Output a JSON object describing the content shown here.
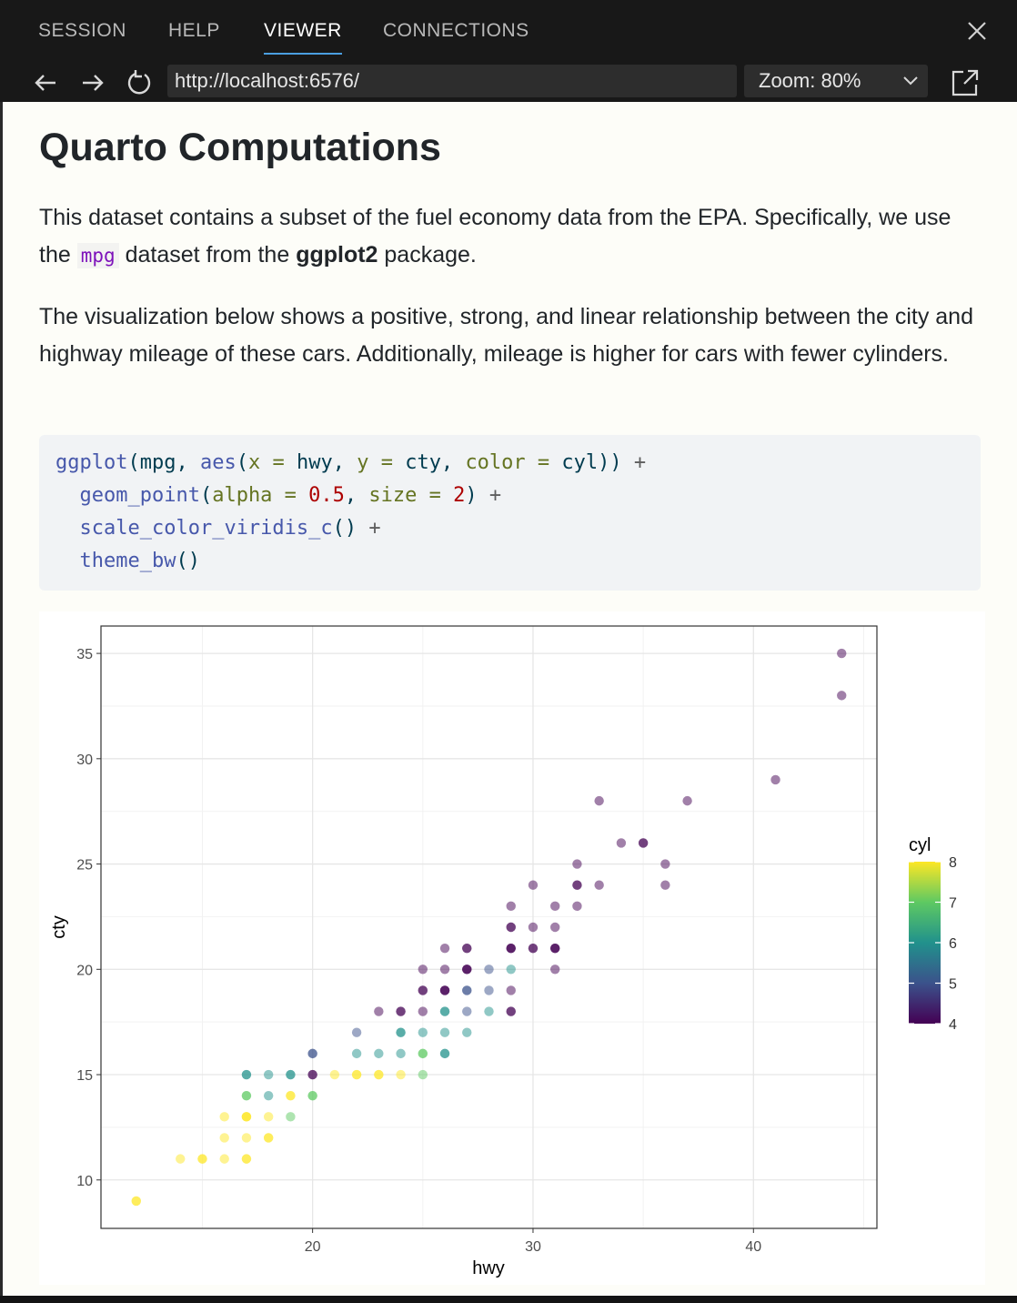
{
  "tabs": [
    {
      "label": "SESSION"
    },
    {
      "label": "HELP"
    },
    {
      "label": "VIEWER"
    },
    {
      "label": "CONNECTIONS"
    }
  ],
  "toolbar": {
    "url": "http://localhost:6576/",
    "zoom": "Zoom: 80%"
  },
  "doc": {
    "title": "Quarto Computations",
    "p1_a": "This dataset contains a subset of the fuel economy data from the EPA. Specifically, we use the ",
    "p1_code": "mpg",
    "p1_b": " dataset from the ",
    "p1_bold": "ggplot2",
    "p1_c": " package.",
    "p2": "The visualization below shows a positive, strong, and linear relationship between the city and highway mileage of these cars. Additionally, mileage is higher for cars with fewer cylinders.",
    "code": {
      "l1_fn": "ggplot",
      "l1_a": "(mpg, ",
      "l1_fn2": "aes",
      "l1_b": "(",
      "l1_x": "x =",
      "l1_c": " hwy, ",
      "l1_y": "y =",
      "l1_d": " cty, ",
      "l1_col": "color =",
      "l1_e": " cyl)) ",
      "l1_plus": "+",
      "l2_fn": "geom_point",
      "l2_a": "(",
      "l2_alpha": "alpha =",
      "l2_num1": " 0.5",
      "l2_b": ", ",
      "l2_size": "size =",
      "l2_num2": " 2",
      "l2_c": ") ",
      "l2_plus": "+",
      "l3_fn": "scale_color_viridis_c",
      "l3_a": "() ",
      "l3_plus": "+",
      "l4_fn": "theme_bw",
      "l4_a": "()"
    }
  },
  "chart_data": {
    "type": "scatter",
    "xlabel": "hwy",
    "ylabel": "cty",
    "xlim": [
      10.4,
      45.6
    ],
    "ylim": [
      7.7,
      36.3
    ],
    "xticks": [
      20,
      30,
      40
    ],
    "yticks": [
      10,
      15,
      20,
      25,
      30,
      35
    ],
    "grid": true,
    "legend": {
      "title": "cyl",
      "position": "right",
      "ticks": [
        8,
        7,
        6,
        5,
        4
      ],
      "range": [
        4,
        8
      ]
    },
    "points": [
      {
        "x": 44,
        "y": 35,
        "cyl": 4
      },
      {
        "x": 44,
        "y": 33,
        "cyl": 4
      },
      {
        "x": 41,
        "y": 29,
        "cyl": 4
      },
      {
        "x": 33,
        "y": 28,
        "cyl": 4
      },
      {
        "x": 37,
        "y": 28,
        "cyl": 4
      },
      {
        "x": 34,
        "y": 26,
        "cyl": 4
      },
      {
        "x": 35,
        "y": 26,
        "cyl": 4
      },
      {
        "x": 35,
        "y": 26,
        "cyl": 4
      },
      {
        "x": 32,
        "y": 25,
        "cyl": 4
      },
      {
        "x": 36,
        "y": 25,
        "cyl": 4
      },
      {
        "x": 30,
        "y": 24,
        "cyl": 4
      },
      {
        "x": 32,
        "y": 24,
        "cyl": 4
      },
      {
        "x": 32,
        "y": 24,
        "cyl": 4
      },
      {
        "x": 33,
        "y": 24,
        "cyl": 4
      },
      {
        "x": 36,
        "y": 24,
        "cyl": 4
      },
      {
        "x": 29,
        "y": 23,
        "cyl": 4
      },
      {
        "x": 31,
        "y": 23,
        "cyl": 4
      },
      {
        "x": 32,
        "y": 23,
        "cyl": 4
      },
      {
        "x": 29,
        "y": 22,
        "cyl": 4
      },
      {
        "x": 29,
        "y": 22,
        "cyl": 4
      },
      {
        "x": 30,
        "y": 22,
        "cyl": 4
      },
      {
        "x": 31,
        "y": 22,
        "cyl": 4
      },
      {
        "x": 26,
        "y": 21,
        "cyl": 4
      },
      {
        "x": 27,
        "y": 21,
        "cyl": 4
      },
      {
        "x": 27,
        "y": 21,
        "cyl": 4
      },
      {
        "x": 29,
        "y": 21,
        "cyl": 4
      },
      {
        "x": 29,
        "y": 21,
        "cyl": 4
      },
      {
        "x": 29,
        "y": 21,
        "cyl": 4
      },
      {
        "x": 30,
        "y": 21,
        "cyl": 4
      },
      {
        "x": 30,
        "y": 21,
        "cyl": 4
      },
      {
        "x": 31,
        "y": 21,
        "cyl": 4
      },
      {
        "x": 31,
        "y": 21,
        "cyl": 4
      },
      {
        "x": 31,
        "y": 21,
        "cyl": 4
      },
      {
        "x": 25,
        "y": 20,
        "cyl": 4
      },
      {
        "x": 26,
        "y": 20,
        "cyl": 4
      },
      {
        "x": 27,
        "y": 20,
        "cyl": 4
      },
      {
        "x": 27,
        "y": 20,
        "cyl": 4
      },
      {
        "x": 27,
        "y": 20,
        "cyl": 4
      },
      {
        "x": 28,
        "y": 20,
        "cyl": 5
      },
      {
        "x": 29,
        "y": 20,
        "cyl": 6
      },
      {
        "x": 31,
        "y": 20,
        "cyl": 4
      },
      {
        "x": 25,
        "y": 19,
        "cyl": 4
      },
      {
        "x": 25,
        "y": 19,
        "cyl": 4
      },
      {
        "x": 26,
        "y": 19,
        "cyl": 4
      },
      {
        "x": 26,
        "y": 19,
        "cyl": 4
      },
      {
        "x": 26,
        "y": 19,
        "cyl": 4
      },
      {
        "x": 27,
        "y": 19,
        "cyl": 5
      },
      {
        "x": 27,
        "y": 19,
        "cyl": 5
      },
      {
        "x": 28,
        "y": 19,
        "cyl": 5
      },
      {
        "x": 29,
        "y": 19,
        "cyl": 4
      },
      {
        "x": 23,
        "y": 18,
        "cyl": 4
      },
      {
        "x": 24,
        "y": 18,
        "cyl": 4
      },
      {
        "x": 24,
        "y": 18,
        "cyl": 4
      },
      {
        "x": 25,
        "y": 18,
        "cyl": 4
      },
      {
        "x": 26,
        "y": 18,
        "cyl": 6
      },
      {
        "x": 26,
        "y": 18,
        "cyl": 6
      },
      {
        "x": 27,
        "y": 18,
        "cyl": 5
      },
      {
        "x": 28,
        "y": 18,
        "cyl": 6
      },
      {
        "x": 29,
        "y": 18,
        "cyl": 4
      },
      {
        "x": 29,
        "y": 18,
        "cyl": 4
      },
      {
        "x": 22,
        "y": 17,
        "cyl": 5
      },
      {
        "x": 24,
        "y": 17,
        "cyl": 6
      },
      {
        "x": 24,
        "y": 17,
        "cyl": 6
      },
      {
        "x": 25,
        "y": 17,
        "cyl": 6
      },
      {
        "x": 26,
        "y": 17,
        "cyl": 6
      },
      {
        "x": 27,
        "y": 17,
        "cyl": 6
      },
      {
        "x": 20,
        "y": 16,
        "cyl": 5
      },
      {
        "x": 20,
        "y": 16,
        "cyl": 5
      },
      {
        "x": 22,
        "y": 16,
        "cyl": 6
      },
      {
        "x": 23,
        "y": 16,
        "cyl": 6
      },
      {
        "x": 24,
        "y": 16,
        "cyl": 6
      },
      {
        "x": 25,
        "y": 16,
        "cyl": 7
      },
      {
        "x": 25,
        "y": 16,
        "cyl": 7
      },
      {
        "x": 26,
        "y": 16,
        "cyl": 6
      },
      {
        "x": 26,
        "y": 16,
        "cyl": 6
      },
      {
        "x": 17,
        "y": 15,
        "cyl": 6
      },
      {
        "x": 17,
        "y": 15,
        "cyl": 6
      },
      {
        "x": 18,
        "y": 15,
        "cyl": 6
      },
      {
        "x": 19,
        "y": 15,
        "cyl": 6
      },
      {
        "x": 19,
        "y": 15,
        "cyl": 6
      },
      {
        "x": 20,
        "y": 15,
        "cyl": 4
      },
      {
        "x": 20,
        "y": 15,
        "cyl": 4
      },
      {
        "x": 21,
        "y": 15,
        "cyl": 8
      },
      {
        "x": 22,
        "y": 15,
        "cyl": 8
      },
      {
        "x": 22,
        "y": 15,
        "cyl": 8
      },
      {
        "x": 23,
        "y": 15,
        "cyl": 8
      },
      {
        "x": 23,
        "y": 15,
        "cyl": 8
      },
      {
        "x": 24,
        "y": 15,
        "cyl": 8
      },
      {
        "x": 25,
        "y": 15,
        "cyl": 7
      },
      {
        "x": 17,
        "y": 14,
        "cyl": 7
      },
      {
        "x": 17,
        "y": 14,
        "cyl": 7
      },
      {
        "x": 18,
        "y": 14,
        "cyl": 6
      },
      {
        "x": 19,
        "y": 14,
        "cyl": 8
      },
      {
        "x": 19,
        "y": 14,
        "cyl": 8
      },
      {
        "x": 20,
        "y": 14,
        "cyl": 7
      },
      {
        "x": 20,
        "y": 14,
        "cyl": 7
      },
      {
        "x": 16,
        "y": 13,
        "cyl": 8
      },
      {
        "x": 17,
        "y": 13,
        "cyl": 8
      },
      {
        "x": 17,
        "y": 13,
        "cyl": 8
      },
      {
        "x": 17,
        "y": 13,
        "cyl": 8
      },
      {
        "x": 18,
        "y": 13,
        "cyl": 8
      },
      {
        "x": 19,
        "y": 13,
        "cyl": 7
      },
      {
        "x": 16,
        "y": 12,
        "cyl": 8
      },
      {
        "x": 17,
        "y": 12,
        "cyl": 8
      },
      {
        "x": 18,
        "y": 12,
        "cyl": 8
      },
      {
        "x": 18,
        "y": 12,
        "cyl": 8
      },
      {
        "x": 14,
        "y": 11,
        "cyl": 8
      },
      {
        "x": 15,
        "y": 11,
        "cyl": 8
      },
      {
        "x": 15,
        "y": 11,
        "cyl": 8
      },
      {
        "x": 16,
        "y": 11,
        "cyl": 8
      },
      {
        "x": 17,
        "y": 11,
        "cyl": 8
      },
      {
        "x": 17,
        "y": 11,
        "cyl": 8
      },
      {
        "x": 12,
        "y": 9,
        "cyl": 8
      },
      {
        "x": 12,
        "y": 9,
        "cyl": 8
      }
    ]
  }
}
